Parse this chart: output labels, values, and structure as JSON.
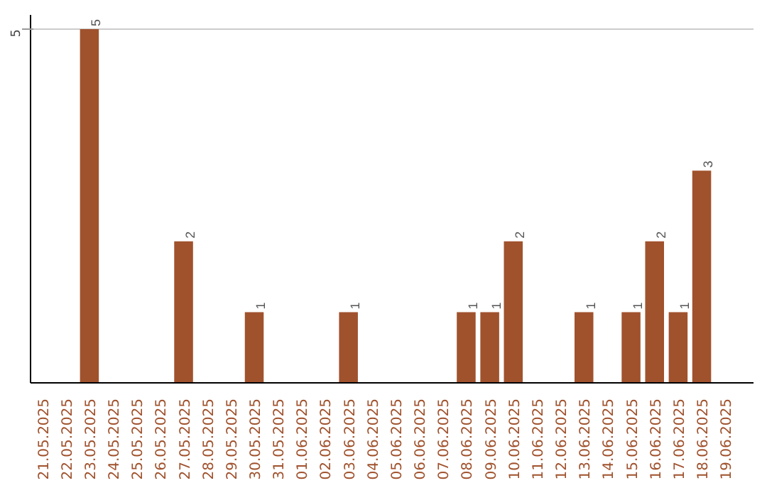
{
  "chart_data": {
    "type": "bar",
    "categories": [
      "21.05.2025",
      "22.05.2025",
      "23.05.2025",
      "24.05.2025",
      "25.05.2025",
      "26.05.2025",
      "27.05.2025",
      "28.05.2025",
      "29.05.2025",
      "30.05.2025",
      "31.05.2025",
      "01.06.2025",
      "02.06.2025",
      "03.06.2025",
      "04.06.2025",
      "05.06.2025",
      "06.06.2025",
      "07.06.2025",
      "08.06.2025",
      "09.06.2025",
      "10.06.2025",
      "11.06.2025",
      "12.06.2025",
      "13.06.2025",
      "14.06.2025",
      "15.06.2025",
      "16.06.2025",
      "17.06.2025",
      "18.06.2025",
      "19.06.2025"
    ],
    "values": [
      0,
      0,
      5,
      0,
      0,
      0,
      2,
      0,
      0,
      1,
      0,
      0,
      0,
      1,
      0,
      0,
      0,
      0,
      1,
      1,
      2,
      0,
      0,
      1,
      0,
      1,
      2,
      1,
      3,
      0
    ],
    "value_labels": [
      null,
      null,
      "5",
      null,
      null,
      null,
      "2",
      null,
      null,
      "1",
      null,
      null,
      null,
      "1",
      null,
      null,
      null,
      null,
      "1",
      "1",
      "2",
      null,
      null,
      "1",
      null,
      "1",
      "2",
      "1",
      "3",
      null
    ],
    "color": "#a0522d",
    "ylim": [
      0,
      5.2
    ],
    "yticks": [
      5
    ],
    "grid": "y"
  }
}
